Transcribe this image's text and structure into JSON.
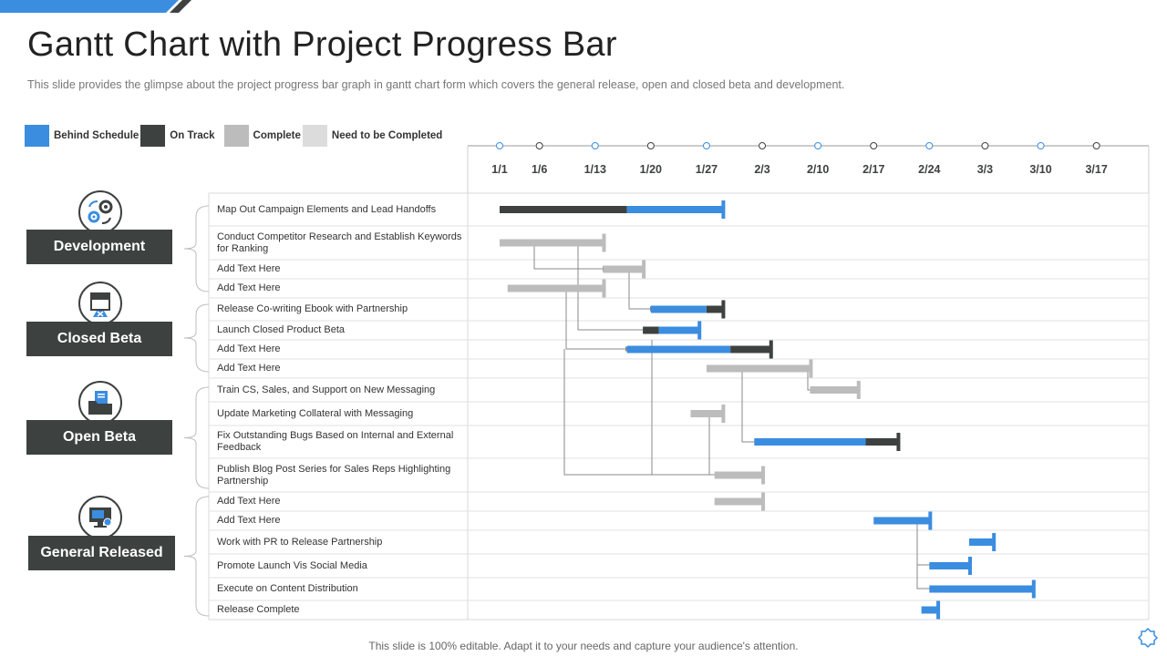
{
  "title": "Gantt Chart with Project Progress Bar",
  "subtitle": "This slide provides  the glimpse about the project progress  bar graph  in gantt chart form which covers the general release,  open  and closed beta and development.",
  "footer": "This slide is 100% editable. Adapt it to your needs and capture your audience's attention.",
  "legend": [
    {
      "label": "Behind Schedule",
      "color": "#3b8de0"
    },
    {
      "label": "On Track",
      "color": "#3d4240"
    },
    {
      "label": "Complete",
      "color": "#bcbcbc"
    },
    {
      "label": "Need to be Completed",
      "color": "#dcdcdc"
    }
  ],
  "colors": {
    "behind": "#3b8de0",
    "on_track": "#3d4240",
    "complete": "#bcbcbc",
    "todo": "#dcdcdc",
    "accent": "#3b8de0"
  },
  "phases": [
    {
      "name": "Development",
      "icon": "gears-icon"
    },
    {
      "name": "Closed Beta",
      "icon": "shop-box-icon"
    },
    {
      "name": "Open Beta",
      "icon": "folder-documents-icon"
    },
    {
      "name": "General Released",
      "icon": "monitor-icon"
    }
  ],
  "chart_data": {
    "type": "gantt",
    "timeline": [
      "1/1",
      "1/6",
      "1/13",
      "1/20",
      "1/27",
      "2/3",
      "2/10",
      "2/17",
      "2/24",
      "3/3",
      "3/10",
      "3/17"
    ],
    "tasks": [
      {
        "label": "Map Out Campaign Elements  and Lead Handoffs",
        "phase": "Development",
        "segments": [
          {
            "start": "1/1",
            "end": "1/17",
            "status": "on_track"
          },
          {
            "start": "1/17",
            "end": "1/29",
            "status": "behind"
          }
        ]
      },
      {
        "label": "Conduct Competitor Research and Establish Keywords for Ranking",
        "phase": "Development",
        "segments": [
          {
            "start": "1/1",
            "end": "1/14",
            "status": "complete"
          }
        ]
      },
      {
        "label": "Add Text Here",
        "phase": "Development",
        "segments": [
          {
            "start": "1/14",
            "end": "1/19",
            "status": "complete"
          }
        ]
      },
      {
        "label": "Add Text Here",
        "phase": "Development",
        "segments": [
          {
            "start": "1/2",
            "end": "1/14",
            "status": "complete"
          }
        ]
      },
      {
        "label": "Release Co-writing Ebook  with  Partnership",
        "phase": "Closed Beta",
        "segments": [
          {
            "start": "1/20",
            "end": "1/27",
            "status": "behind"
          },
          {
            "start": "1/27",
            "end": "1/29",
            "status": "on_track"
          }
        ]
      },
      {
        "label": "Launch Closed Product Beta",
        "phase": "Closed Beta",
        "segments": [
          {
            "start": "1/19",
            "end": "1/21",
            "status": "on_track"
          },
          {
            "start": "1/21",
            "end": "1/26",
            "status": "behind"
          }
        ]
      },
      {
        "label": "Add Text Here",
        "phase": "Closed Beta",
        "segments": [
          {
            "start": "1/17",
            "end": "1/30",
            "status": "behind"
          },
          {
            "start": "1/30",
            "end": "2/4",
            "status": "on_track"
          }
        ]
      },
      {
        "label": "Add Text Here",
        "phase": "Closed Beta",
        "segments": [
          {
            "start": "1/27",
            "end": "2/9",
            "status": "complete"
          }
        ]
      },
      {
        "label": "Train CS, Sales, and Support on New Messaging",
        "phase": "Open Beta",
        "segments": [
          {
            "start": "2/9",
            "end": "2/15",
            "status": "complete"
          }
        ]
      },
      {
        "label": "Update Marketing Collateral with Messaging",
        "phase": "Open Beta",
        "segments": [
          {
            "start": "1/25",
            "end": "1/29",
            "status": "complete"
          }
        ]
      },
      {
        "label": "Fix Outstanding Bugs Based on Internal and External Feedback",
        "phase": "Open Beta",
        "segments": [
          {
            "start": "2/2",
            "end": "2/16",
            "status": "behind"
          },
          {
            "start": "2/16",
            "end": "2/20",
            "status": "on_track"
          }
        ]
      },
      {
        "label": "Publish Blog Post Series for Sales Reps Highlighting Partnership",
        "phase": "Open Beta",
        "segments": [
          {
            "start": "1/28",
            "end": "2/3",
            "status": "complete"
          }
        ]
      },
      {
        "label": "Add Text Here",
        "phase": "General Released",
        "segments": [
          {
            "start": "1/28",
            "end": "2/3",
            "status": "complete"
          }
        ]
      },
      {
        "label": "Add Text Here",
        "phase": "General Released",
        "segments": [
          {
            "start": "2/17",
            "end": "2/24",
            "status": "behind"
          }
        ]
      },
      {
        "label": "Work with PR to Release Partnership",
        "phase": "General Released",
        "segments": [
          {
            "start": "3/1",
            "end": "3/4",
            "status": "behind"
          }
        ]
      },
      {
        "label": "Promote Launch Vis Social Media",
        "phase": "General Released",
        "segments": [
          {
            "start": "2/24",
            "end": "3/1",
            "status": "behind"
          }
        ]
      },
      {
        "label": "Execute on Content Distribution",
        "phase": "General Released",
        "segments": [
          {
            "start": "2/24",
            "end": "3/9",
            "status": "behind"
          }
        ]
      },
      {
        "label": "Release Complete",
        "phase": "General Released",
        "segments": [
          {
            "start": "2/23",
            "end": "2/25",
            "status": "behind"
          }
        ]
      }
    ]
  }
}
